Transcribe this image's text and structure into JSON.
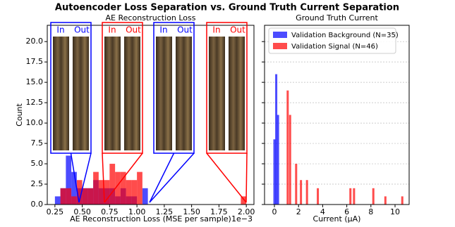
{
  "title": "Autoencoder Loss Separation vs. Ground Truth Current Separation",
  "chart_data": [
    {
      "type": "histogram",
      "title": "AE Reconstruction Loss",
      "xlabel": "AE Reconstruction Loss (MSE per sample)",
      "ylabel": "Count",
      "x_offset_label": "1e−3",
      "xlim": [
        0.18,
        2.07
      ],
      "xticks": [
        {
          "value": 0.25,
          "label": "0.25"
        },
        {
          "value": 0.5,
          "label": "0.50"
        },
        {
          "value": 0.75,
          "label": "0.75"
        },
        {
          "value": 1.0,
          "label": "1.00"
        },
        {
          "value": 1.25,
          "label": "1.25"
        },
        {
          "value": 1.5,
          "label": "1.50"
        },
        {
          "value": 1.75,
          "label": "1.75"
        },
        {
          "value": 2.0,
          "label": "2.00"
        }
      ],
      "ylim": [
        0,
        22
      ],
      "yticks": [
        {
          "value": 0,
          "label": "0.0"
        },
        {
          "value": 2.5,
          "label": "2.5"
        },
        {
          "value": 5,
          "label": "5.0"
        },
        {
          "value": 7.5,
          "label": "7.5"
        },
        {
          "value": 10,
          "label": "10.0"
        },
        {
          "value": 12.5,
          "label": "12.5"
        },
        {
          "value": 15,
          "label": "15.0"
        },
        {
          "value": 17.5,
          "label": "17.5"
        },
        {
          "value": 20,
          "label": "20.0"
        }
      ],
      "series": [
        {
          "color": "#0000ff",
          "bins": [
            0.25,
            0.3,
            0.35,
            0.4,
            0.45,
            0.5,
            0.55,
            0.6,
            0.65,
            0.7,
            0.75,
            0.8,
            0.85,
            0.9,
            0.95,
            1.0,
            1.05,
            1.1
          ],
          "values": [
            1,
            2,
            6,
            4,
            2,
            2,
            2,
            3,
            2,
            2,
            2,
            1,
            2,
            1,
            1,
            0,
            2
          ]
        },
        {
          "color": "#ff0000",
          "bins": [
            0.3,
            0.35,
            0.4,
            0.45,
            0.5,
            0.55,
            0.6,
            0.65,
            0.7,
            0.75,
            0.8,
            0.85,
            0.9,
            0.95,
            1.0,
            1.05,
            1.1,
            1.15,
            1.2,
            1.25,
            1.3,
            1.35,
            1.4,
            1.45,
            1.5,
            1.55,
            1.6,
            1.65,
            1.7,
            1.75,
            1.8,
            1.85,
            1.9,
            1.95,
            2.0
          ],
          "values": [
            2,
            2,
            1,
            3,
            2,
            2,
            4,
            3,
            3,
            5,
            4,
            4,
            3,
            3,
            4,
            0,
            0,
            0,
            0,
            0,
            0,
            0,
            0,
            0,
            0,
            0,
            0,
            0,
            0,
            0,
            0,
            0,
            0,
            1
          ]
        }
      ],
      "insets": [
        {
          "color": "#0000ff",
          "labels": [
            "In",
            "Out"
          ]
        },
        {
          "color": "#ff0000",
          "labels": [
            "In",
            "Out"
          ]
        },
        {
          "color": "#0000ff",
          "labels": [
            "In",
            "Out"
          ]
        },
        {
          "color": "#ff0000",
          "labels": [
            "In",
            "Out"
          ]
        }
      ]
    },
    {
      "type": "bar",
      "title": "Ground Truth Current",
      "xlabel": "Current (μA)",
      "grid": true,
      "legend": "upper left",
      "xlim": [
        -0.82,
        11.17
      ],
      "xticks": [
        0,
        2,
        4,
        6,
        8,
        10
      ],
      "ylim": [
        0,
        22
      ],
      "series": [
        {
          "name": "Validation Background (N=35)",
          "color": "#0000ff",
          "x": [
            0.0,
            0.15,
            0.3
          ],
          "values": [
            8,
            16,
            11
          ]
        },
        {
          "name": "Validation Signal (N=46)",
          "color": "#ff0000",
          "x": [
            1.1,
            1.3,
            1.8,
            2.2,
            2.7,
            3.6,
            6.3,
            6.6,
            8.2,
            9.2,
            10.6
          ],
          "values": [
            14,
            11,
            5,
            3,
            3,
            2,
            2,
            2,
            2,
            1,
            1
          ]
        }
      ]
    }
  ]
}
